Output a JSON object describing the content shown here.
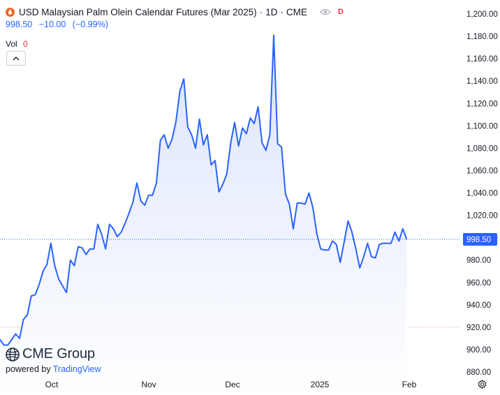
{
  "header": {
    "title": "USD Malaysian Palm Olein Calendar Futures (Mar 2025)",
    "interval": "1D",
    "exchange": "CME",
    "price": "998.50",
    "change": "−10.00",
    "change_pct": "(−0.99%)",
    "vol_label": "Vol",
    "vol_value": "0",
    "badge": "D"
  },
  "logo": {
    "brand": "CME Group",
    "powered_by": "powered by",
    "powered_brand": "TradingView"
  },
  "colors": {
    "line": "#2962ff",
    "area_top": "#d7e1fb",
    "area_bottom": "#ffffff",
    "price_tag": "#2962ff",
    "down": "#f23645"
  },
  "chart_data": {
    "type": "area",
    "title": "USD Malaysian Palm Olein Calendar Futures (Mar 2025)",
    "x_tick_labels": [
      "Oct",
      "Nov",
      "Dec",
      "2025",
      "Feb"
    ],
    "y_tick_labels": [
      "880.00",
      "900.00",
      "920.00",
      "940.00",
      "960.00",
      "980.00",
      "1,000.00",
      "1,020.00",
      "1,040.00",
      "1,060.00",
      "1,080.00",
      "1,100.00",
      "1,120.00",
      "1,140.00",
      "1,160.00",
      "1,180.00",
      "1,200.00"
    ],
    "ylim": [
      880,
      1200
    ],
    "last_price": 998.5,
    "last_price_label": "998.50",
    "reference_level": 920,
    "grid": false,
    "legend": "top-left",
    "series": [
      {
        "values": [
          909,
          904,
          904,
          909,
          914,
          910,
          927,
          931,
          948,
          949,
          958,
          970,
          976,
          995,
          975,
          963,
          957,
          951,
          980,
          975,
          992,
          991,
          985,
          990,
          990,
          1012,
          1003,
          990,
          1012,
          1008,
          1001,
          1005,
          1013,
          1022,
          1032,
          1049,
          1033,
          1029,
          1038,
          1038,
          1049,
          1087,
          1092,
          1080,
          1088,
          1104,
          1131,
          1142,
          1099,
          1092,
          1080,
          1106,
          1083,
          1092,
          1065,
          1069,
          1041,
          1048,
          1057,
          1085,
          1103,
          1082,
          1098,
          1093,
          1107,
          1102,
          1117,
          1085,
          1078,
          1092,
          1181,
          1084,
          1081,
          1039,
          1030,
          1008,
          1031,
          1031,
          1030,
          1040,
          1027,
          1004,
          990,
          989,
          989,
          997,
          994,
          978,
          996,
          1015,
          1005,
          990,
          973,
          983,
          995,
          983,
          982,
          994,
          995,
          995,
          995,
          1005,
          997,
          1008,
          998.5
        ]
      }
    ]
  }
}
